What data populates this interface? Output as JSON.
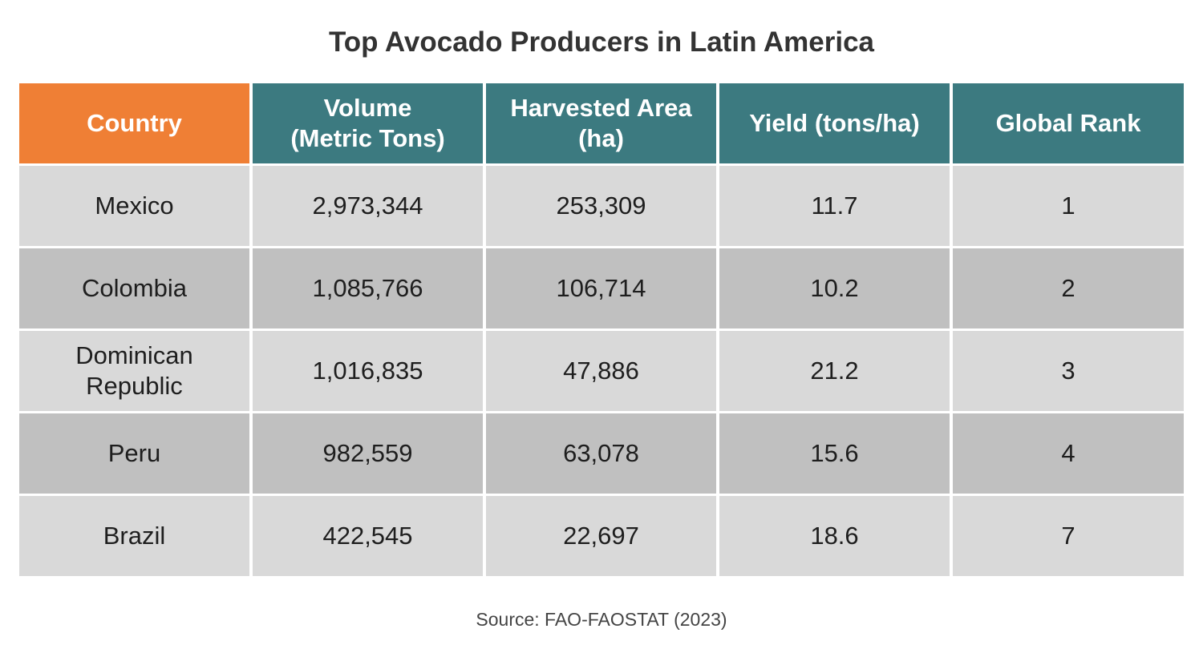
{
  "chart_data": {
    "type": "table",
    "title": "Top Avocado Producers in Latin America",
    "columns": [
      "Country",
      "Volume\n(Metric Tons)",
      "Harvested Area\n(ha)",
      "Yield (tons/ha)",
      "Global Rank"
    ],
    "rows": [
      [
        "Mexico",
        "2,973,344",
        "253,309",
        "11.7",
        "1"
      ],
      [
        "Colombia",
        "1,085,766",
        "106,714",
        "10.2",
        "2"
      ],
      [
        "Dominican\nRepublic",
        "1,016,835",
        "47,886",
        "21.2",
        "3"
      ],
      [
        "Peru",
        "982,559",
        "63,078",
        "15.6",
        "4"
      ],
      [
        "Brazil",
        "422,545",
        "22,697",
        "18.6",
        "7"
      ]
    ],
    "source": "Source: FAO-FAOSTAT (2023)"
  },
  "colors": {
    "first_header": "#ef7f35",
    "header": "#3c7a80",
    "row_light": "#d9d9d9",
    "row_dark": "#c0c0c0"
  }
}
